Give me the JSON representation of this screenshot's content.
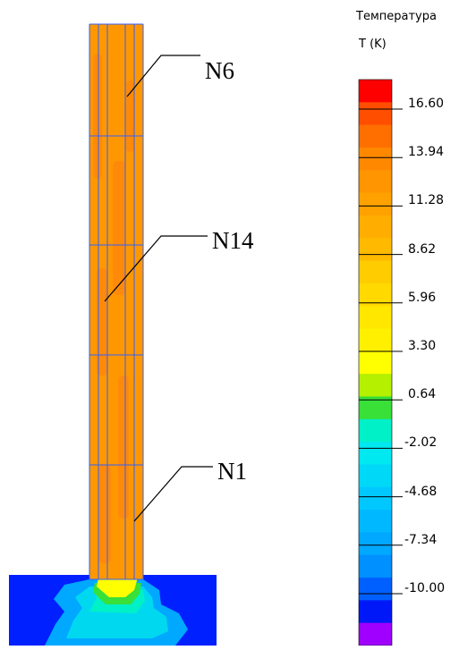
{
  "legend": {
    "title": "Температура",
    "unit": "T (K)",
    "ticks": [
      "16.60",
      "13.94",
      "11.28",
      "8.62",
      "5.96",
      "3.30",
      "0.64",
      "-2.02",
      "-4.68",
      "-7.34",
      "-10.00"
    ],
    "colors": [
      "#ff0000",
      "#ff4e00",
      "#ff6f00",
      "#ff8800",
      "#ff9500",
      "#ffa200",
      "#ffae00",
      "#ffba00",
      "#ffcc00",
      "#ffd900",
      "#ffe700",
      "#fff000",
      "#ffff00",
      "#b4f000",
      "#38e038",
      "#00f0c8",
      "#00e8f0",
      "#00d8f8",
      "#00c8ff",
      "#00b8ff",
      "#00a8ff",
      "#0090ff",
      "#0060ff",
      "#0018f8",
      "#a000ff"
    ]
  },
  "nodes": [
    {
      "label": "N6"
    },
    {
      "label": "N14"
    },
    {
      "label": "N1"
    }
  ],
  "colors": {
    "column_fill": "#ff9800",
    "column_hotspot": "#ff7f10",
    "grid_line": "#3060ff",
    "foundation": "#0020ff"
  }
}
